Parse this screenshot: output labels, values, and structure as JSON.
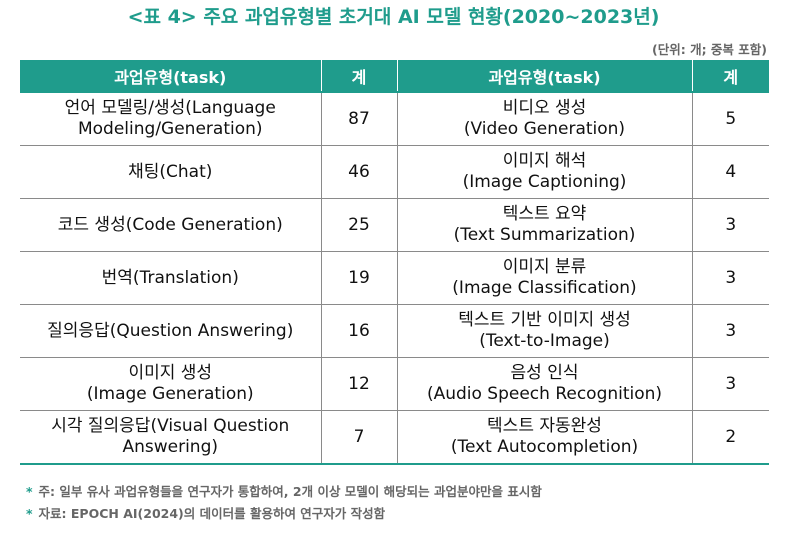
{
  "title": "<표 4> 주요 과업유형별 초거대 AI 모델 현황(2020~2023년)",
  "unit_note": "(단위: 개; 중복 포함)",
  "table": {
    "headers": [
      "과업유형(task)",
      "계",
      "과업유형(task)",
      "계"
    ],
    "rows": [
      {
        "task1_line1": "언어 모델링/생성(Language",
        "task1_line2": "Modeling/Generation)",
        "count1": "87",
        "task2_line1": "비디오 생성",
        "task2_line2": "(Video Generation)",
        "count2": "5"
      },
      {
        "task1_line1": "채팅(Chat)",
        "task1_line2": "",
        "count1": "46",
        "task2_line1": "이미지 해석",
        "task2_line2": "(Image Captioning)",
        "count2": "4"
      },
      {
        "task1_line1": "코드 생성(Code Generation)",
        "task1_line2": "",
        "count1": "25",
        "task2_line1": "텍스트 요약",
        "task2_line2": "(Text Summarization)",
        "count2": "3"
      },
      {
        "task1_line1": "번역(Translation)",
        "task1_line2": "",
        "count1": "19",
        "task2_line1": "이미지 분류",
        "task2_line2": "(Image Classification)",
        "count2": "3"
      },
      {
        "task1_line1": "질의응답(Question Answering)",
        "task1_line2": "",
        "count1": "16",
        "task2_line1": "텍스트 기반 이미지 생성",
        "task2_line2": "(Text-to-Image)",
        "count2": "3"
      },
      {
        "task1_line1": "이미지 생성",
        "task1_line2": "(Image Generation)",
        "count1": "12",
        "task2_line1": "음성 인식",
        "task2_line2": "(Audio Speech Recognition)",
        "count2": "3"
      },
      {
        "task1_line1": "시각 질의응답(Visual Question",
        "task1_line2": "Answering)",
        "count1": "7",
        "task2_line1": "텍스트 자동완성",
        "task2_line2": "(Text Autocompletion)",
        "count2": "2"
      }
    ]
  },
  "notes": [
    {
      "marker": "*",
      "text": "주: 일부 유사 과업유형들을 연구자가 통합하여, 2개 이상 모델이 해당되는 과업분야만을 표시함"
    },
    {
      "marker": "*",
      "text": "자료: EPOCH AI(2024)의 데이터를 활용하여 연구자가 작성함"
    }
  ]
}
